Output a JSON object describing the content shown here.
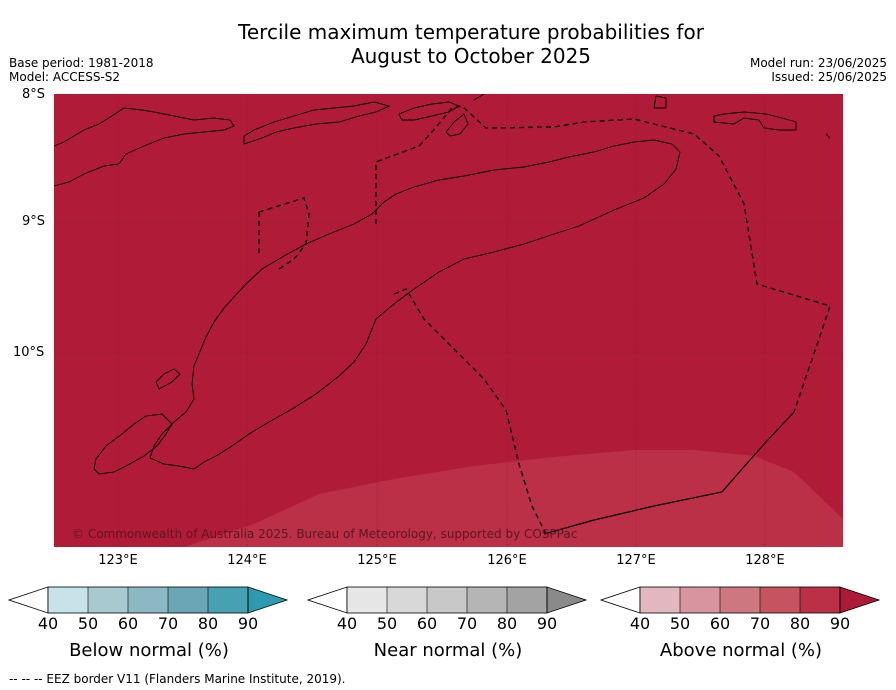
{
  "title_line1": "Tercile maximum temperature probabilities for",
  "title_line2": "August to October 2025",
  "meta_left": [
    "Base period: 1981-2018",
    "Model: ACCESS-S2"
  ],
  "meta_right": [
    "Model run: 23/06/2025",
    "Issued: 25/06/2025"
  ],
  "map": {
    "lat_labels": [
      "8°S",
      "9°S",
      "10°S"
    ],
    "lon_labels": [
      "123°E",
      "124°E",
      "125°E",
      "126°E",
      "127°E",
      "128°E"
    ],
    "dominant_category": "Above normal",
    "dominant_probability_pct": 90,
    "secondary_band_probability_pct": 80,
    "colors": {
      "above_90": "#b01c38",
      "above_80": "#bb3047",
      "coast": "#000000",
      "grid": "#8a1a2c"
    },
    "copyright": "© Commonwealth of Australia 2025. Bureau of Meteorology, supported by COSPPac"
  },
  "colorbars": [
    {
      "title": "Below normal (%)",
      "ticks": [
        "40",
        "50",
        "60",
        "70",
        "80",
        "90"
      ],
      "colors": [
        "#c7e2e8",
        "#a8c9cf",
        "#8bb8c2",
        "#6aa7b4",
        "#46a1b1",
        "#2e9ab0"
      ]
    },
    {
      "title": "Near normal (%)",
      "ticks": [
        "40",
        "50",
        "60",
        "70",
        "80",
        "90"
      ],
      "colors": [
        "#e6e6e6",
        "#d8d8d8",
        "#c8c8c8",
        "#b5b5b5",
        "#a3a3a3",
        "#8a8a8a"
      ]
    },
    {
      "title": "Above normal (%)",
      "ticks": [
        "40",
        "50",
        "60",
        "70",
        "80",
        "90"
      ],
      "colors": [
        "#e3b7bf",
        "#d9959f",
        "#cd7780",
        "#c65460",
        "#bb3047",
        "#ad1a38"
      ]
    }
  ],
  "footer": "--  --  -- EEZ border V11 (Flanders Marine Institute, 2019)."
}
